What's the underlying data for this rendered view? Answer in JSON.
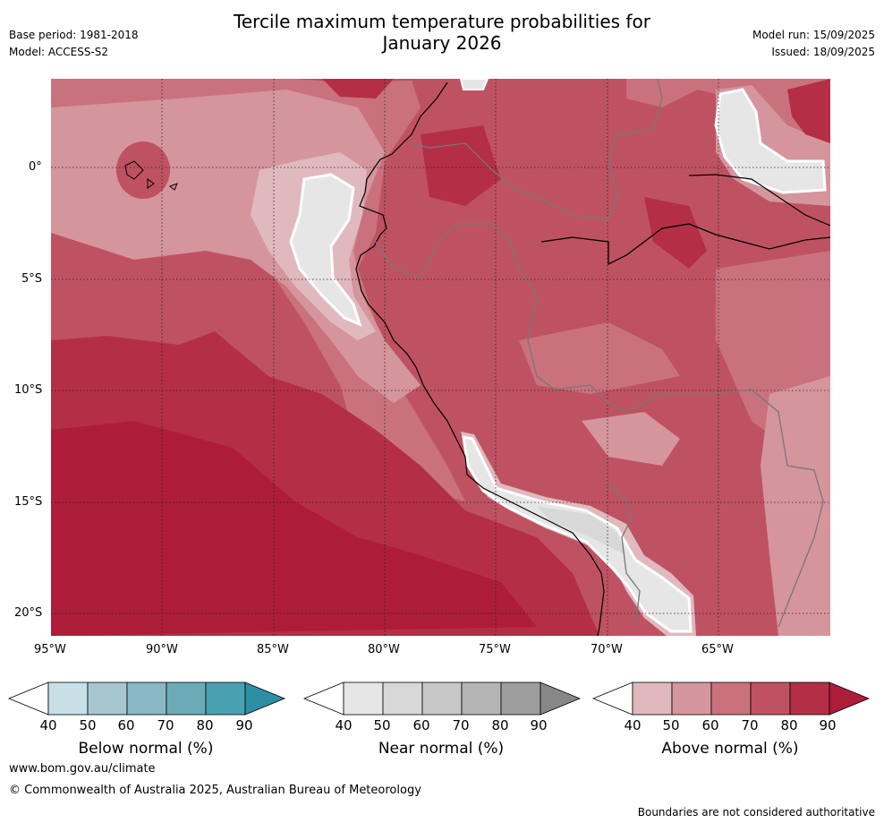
{
  "header": {
    "title_line1": "Tercile maximum temperature probabilities for",
    "title_line2": "January 2026",
    "base_period": "Base period: 1981-2018",
    "model": "Model: ACCESS-S2",
    "model_run": "Model run: 15/09/2025",
    "issued": "Issued: 18/09/2025"
  },
  "axes": {
    "lat_labels": [
      "0°",
      "5°S",
      "10°S",
      "15°S",
      "20°S"
    ],
    "lon_labels": [
      "95°W",
      "90°W",
      "85°W",
      "80°W",
      "75°W",
      "70°W",
      "65°W"
    ]
  },
  "colorbars": [
    {
      "title": "Below normal (%)",
      "ticks": [
        "40",
        "50",
        "60",
        "70",
        "80",
        "90"
      ],
      "colors": [
        "#ffffff",
        "#c6e0e6",
        "#a6c7cf",
        "#89b8c4",
        "#6daab7",
        "#49a0b0",
        "#2e8ea3"
      ]
    },
    {
      "title": "Near normal (%)",
      "ticks": [
        "40",
        "50",
        "60",
        "70",
        "80",
        "90"
      ],
      "colors": [
        "#ffffff",
        "#e6e6e6",
        "#d8d8d8",
        "#c8c8c8",
        "#b4b4b4",
        "#9e9e9e",
        "#878787"
      ]
    },
    {
      "title": "Above normal (%)",
      "ticks": [
        "40",
        "50",
        "60",
        "70",
        "80",
        "90"
      ],
      "colors": [
        "#ffffff",
        "#e0b9be",
        "#d5959d",
        "#c9727e",
        "#bf5262",
        "#b42f45",
        "#ad1d3a"
      ]
    }
  ],
  "footer": {
    "url": "www.bom.gov.au/climate",
    "copyright": "© Commonwealth of Australia 2025, Australian Bureau of Meteorology",
    "disclaimer": "Boundaries are not considered authoritative"
  }
}
